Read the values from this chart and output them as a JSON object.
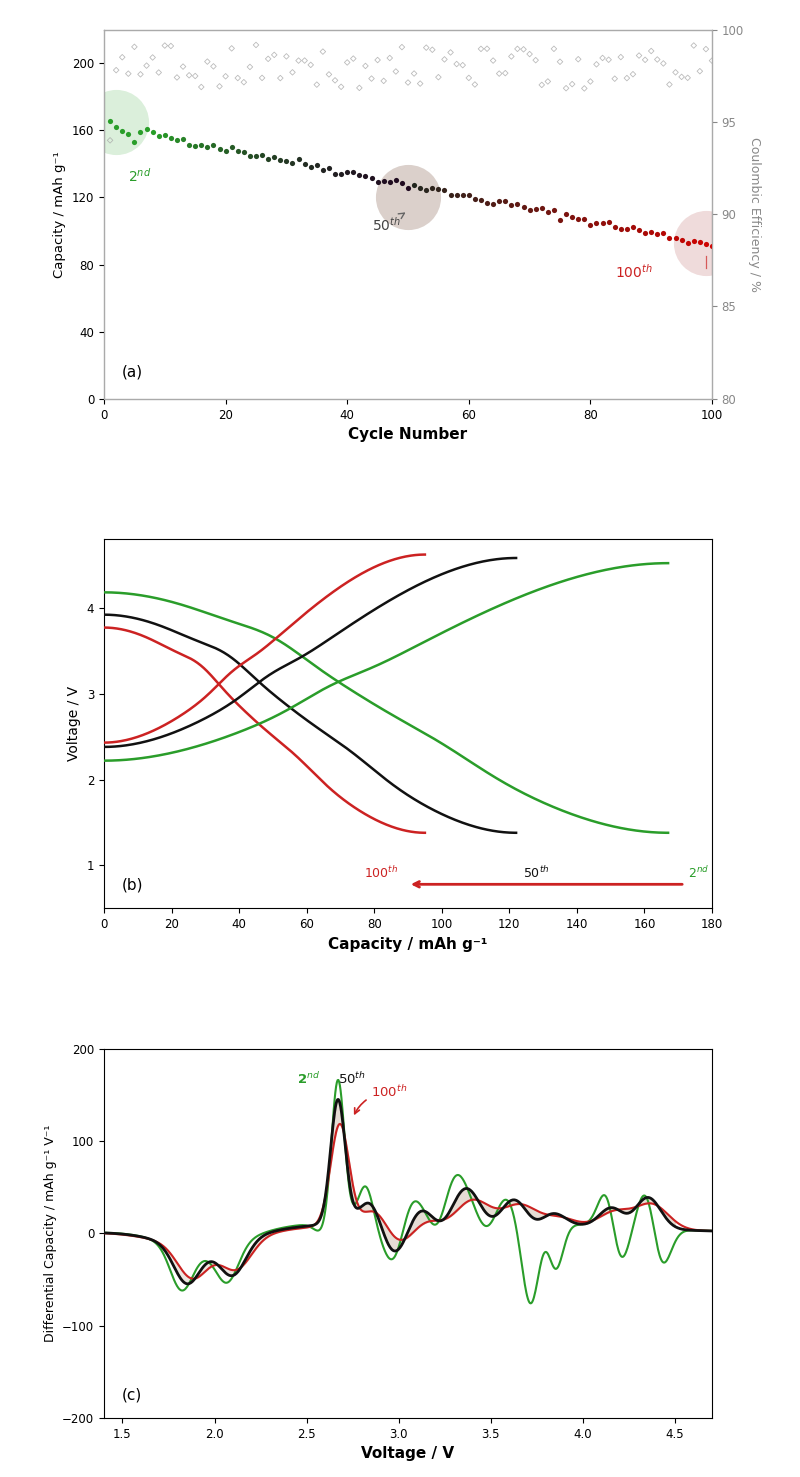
{
  "panel_a": {
    "title": "(a)",
    "xlabel": "Cycle Number",
    "ylabel": "Capacity / mAh g⁻¹",
    "ylabel2": "Coulombic Efficiency / %",
    "xlim": [
      0,
      100
    ],
    "ylim": [
      0,
      220
    ],
    "ylim2": [
      80,
      100
    ],
    "ce_color": "#aaaaaa",
    "highlight_2nd": {
      "cycle": 2,
      "cap": 165,
      "color": "#88cc88",
      "alpha": 0.3
    },
    "highlight_50th": {
      "cycle": 50,
      "cap": 120,
      "color": "#886655",
      "alpha": 0.3
    },
    "highlight_100th": {
      "cycle": 99,
      "cap": 93,
      "color": "#cc8888",
      "alpha": 0.3
    }
  },
  "panel_b": {
    "title": "(b)",
    "xlabel": "Capacity / mAh g⁻¹",
    "ylabel": "Voltage / V",
    "xlim": [
      0,
      180
    ],
    "ylim": [
      0.5,
      4.8
    ],
    "yticks": [
      1,
      2,
      3,
      4
    ],
    "xticks": [
      0,
      20,
      40,
      60,
      80,
      100,
      120,
      140,
      160,
      180
    ],
    "color_2nd": "#2a9d2a",
    "color_50th": "#111111",
    "color_100th": "#cc2222"
  },
  "panel_c": {
    "title": "(c)",
    "xlabel": "Voltage / V",
    "ylabel": "Differential Capacity / mAh g⁻¹ V⁻¹",
    "xlim": [
      1.4,
      4.7
    ],
    "ylim": [
      -200,
      200
    ],
    "yticks": [
      -200,
      -100,
      0,
      100,
      200
    ],
    "xticks": [
      1.5,
      2.0,
      2.5,
      3.0,
      3.5,
      4.0,
      4.5
    ],
    "color_2nd": "#2a9d2a",
    "color_50th": "#111111",
    "color_100th": "#cc2222",
    "fill_color": "#c8b4a0",
    "fill_alpha": 0.45
  }
}
